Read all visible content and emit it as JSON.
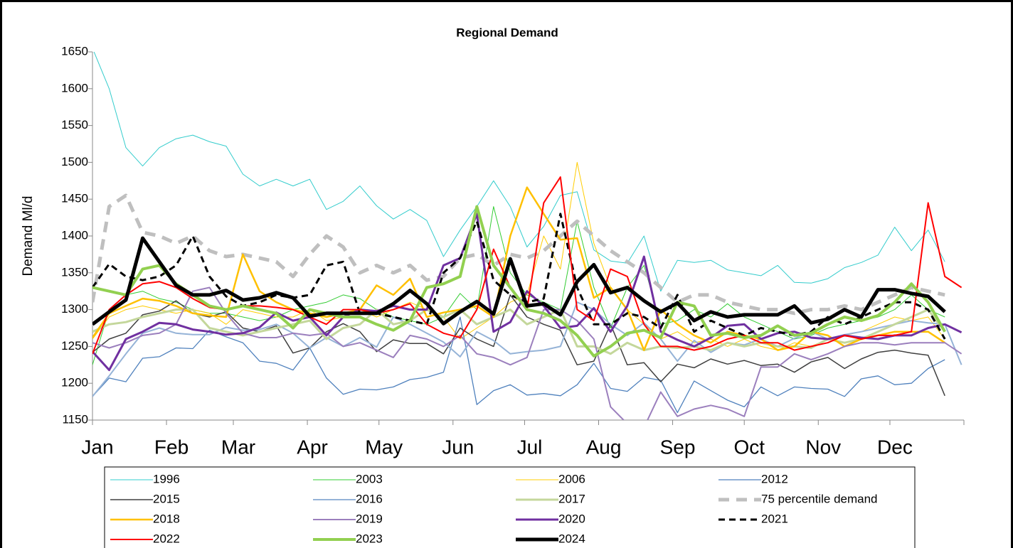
{
  "chart_data": {
    "type": "line",
    "title": "Regional Demand",
    "y_label": "Demand Ml/d",
    "x": [
      0,
      7,
      14,
      21,
      28,
      35,
      42,
      49,
      56,
      63,
      70,
      77,
      84,
      91,
      98,
      105,
      112,
      119,
      126,
      133,
      140,
      147,
      154,
      161,
      168,
      175,
      182,
      189,
      196,
      203,
      210,
      217,
      224,
      231,
      238,
      245,
      252,
      259,
      266,
      273,
      280,
      287,
      294,
      301,
      308,
      315,
      322,
      329,
      336,
      343,
      350,
      357,
      364
    ],
    "xlim": [
      0,
      365
    ],
    "xticks": [
      {
        "value": 0,
        "label": "Jan"
      },
      {
        "value": 31,
        "label": "Feb"
      },
      {
        "value": 59,
        "label": "Mar"
      },
      {
        "value": 90,
        "label": "Apr"
      },
      {
        "value": 120,
        "label": "May"
      },
      {
        "value": 151,
        "label": "Jun"
      },
      {
        "value": 181,
        "label": "Jul"
      },
      {
        "value": 212,
        "label": "Aug"
      },
      {
        "value": 243,
        "label": "Sep"
      },
      {
        "value": 273,
        "label": "Oct"
      },
      {
        "value": 304,
        "label": "Nov"
      },
      {
        "value": 334,
        "label": "Dec"
      }
    ],
    "ylim": [
      1150,
      1650
    ],
    "yticks": [
      1150,
      1200,
      1250,
      1300,
      1350,
      1400,
      1450,
      1500,
      1550,
      1600,
      1650
    ],
    "series": [
      {
        "name": "1996",
        "color": "#33cccc",
        "width": 1,
        "dash": false,
        "values": [
          1655,
          1600,
          1520,
          1495,
          1520,
          1532,
          1537,
          1528,
          1522,
          1484,
          1468,
          1477,
          1468,
          1477,
          1436,
          1447,
          1468,
          1441,
          1423,
          1436,
          1421,
          1372,
          1408,
          1440,
          1475,
          1440,
          1385,
          1413,
          1455,
          1460,
          1381,
          1366,
          1363,
          1400,
          1325,
          1367,
          1364,
          1367,
          1354,
          1350,
          1346,
          1360,
          1337,
          1336,
          1342,
          1357,
          1364,
          1374,
          1412,
          1380,
          1408,
          1365,
          null
        ]
      },
      {
        "name": "2003",
        "color": "#33cc33",
        "width": 1,
        "dash": false,
        "values": [
          1225,
          1300,
          1320,
          1325,
          1315,
          1310,
          1300,
          1295,
          1295,
          1290,
          1285,
          1290,
          1300,
          1305,
          1310,
          1320,
          1315,
          1300,
          1290,
          1285,
          1280,
          1290,
          1322,
          1300,
          1440,
          1350,
          1320,
          1310,
          1300,
          1420,
          1330,
          1275,
          1330,
          1360,
          1280,
          1285,
          1300,
          1290,
          1308,
          1290,
          1280,
          1270,
          1260,
          1265,
          1275,
          1280,
          1285,
          1290,
          1300,
          1320,
          1300,
          1290,
          null
        ]
      },
      {
        "name": "2006",
        "color": "#ffcc00",
        "width": 1,
        "dash": false,
        "values": [
          1260,
          1290,
          1300,
          1305,
          1300,
          1295,
          1300,
          1295,
          1280,
          1300,
          1295,
          1290,
          1290,
          1300,
          1285,
          1290,
          1300,
          1290,
          1300,
          1310,
          1300,
          1290,
          1260,
          1275,
          1290,
          1310,
          1320,
          1400,
          1355,
          1500,
          1390,
          1330,
          1300,
          1280,
          1260,
          1270,
          1255,
          1260,
          1250,
          1260,
          1250,
          1245,
          1255,
          1250,
          1260,
          1265,
          1270,
          1280,
          1290,
          1285,
          1290,
          1260,
          null
        ]
      },
      {
        "name": "2012",
        "color": "#4f81bd",
        "width": 1.3,
        "dash": false,
        "values": [
          1182,
          1207,
          1202,
          1234,
          1236,
          1248,
          1247,
          1272,
          1263,
          1255,
          1230,
          1227,
          1218,
          1248,
          1207,
          1185,
          1192,
          1191,
          1195,
          1205,
          1208,
          1215,
          1290,
          1171,
          1190,
          1198,
          1184,
          1186,
          1183,
          1198,
          1227,
          1193,
          1189,
          1208,
          1204,
          1160,
          1203,
          1190,
          1177,
          1168,
          1195,
          1183,
          1195,
          1193,
          1192,
          1182,
          1206,
          1210,
          1198,
          1200,
          1220,
          1232,
          null
        ]
      },
      {
        "name": "2015",
        "color": "#404040",
        "width": 1.5,
        "dash": false,
        "values": [
          1242,
          1260,
          1268,
          1293,
          1298,
          1312,
          1295,
          1290,
          1297,
          1275,
          1270,
          1278,
          1241,
          1248,
          1270,
          1281,
          1270,
          1243,
          1259,
          1254,
          1254,
          1240,
          1275,
          1260,
          1250,
          1320,
          1290,
          1280,
          1272,
          1225,
          1230,
          1280,
          1225,
          1228,
          1202,
          1226,
          1221,
          1233,
          1226,
          1231,
          1224,
          1226,
          1215,
          1229,
          1235,
          1220,
          1233,
          1242,
          1245,
          1241,
          1238,
          1183,
          null
        ]
      },
      {
        "name": "2016",
        "color": "#95b3d7",
        "width": 2,
        "dash": false,
        "values": [
          1182,
          1210,
          1240,
          1268,
          1275,
          1268,
          1266,
          1266,
          1276,
          1272,
          1273,
          1280,
          1268,
          1248,
          1262,
          1250,
          1262,
          1249,
          1290,
          1280,
          1268,
          1256,
          1236,
          1270,
          1258,
          1240,
          1243,
          1245,
          1250,
          1310,
          1300,
          1280,
          1265,
          1282,
          1260,
          1230,
          1258,
          1242,
          1255,
          1252,
          1260,
          1250,
          1261,
          1270,
          1260,
          1266,
          1270,
          1275,
          1280,
          1285,
          1282,
          1280,
          1225
        ]
      },
      {
        "name": "2017",
        "color": "#c4d79b",
        "width": 3,
        "dash": false,
        "values": [
          1270,
          1280,
          1283,
          1290,
          1295,
          1300,
          1300,
          1275,
          1270,
          1265,
          1270,
          1275,
          1280,
          1285,
          1260,
          1275,
          1280,
          1300,
          1280,
          1285,
          1300,
          1290,
          1300,
          1280,
          1290,
          1300,
          1280,
          1290,
          1300,
          1250,
          1250,
          1240,
          1255,
          1245,
          1250,
          1248,
          1250,
          1245,
          1255,
          1250,
          1255,
          1250,
          1250,
          1248,
          1260,
          1255,
          1260,
          1270,
          1280,
          1290,
          1300,
          1270,
          null
        ]
      },
      {
        "name": "75 percentile demand",
        "color": "#bfbfbf",
        "width": 5,
        "dash": true,
        "values": [
          1310,
          1440,
          1455,
          1405,
          1400,
          1390,
          1400,
          1380,
          1372,
          1375,
          1370,
          1365,
          1345,
          1375,
          1400,
          1385,
          1350,
          1360,
          1350,
          1360,
          1340,
          1345,
          1370,
          1375,
          1360,
          1375,
          1370,
          1380,
          1400,
          1420,
          1400,
          1380,
          1365,
          1350,
          1330,
          1310,
          1320,
          1320,
          1310,
          1305,
          1300,
          1300,
          1295,
          1300,
          1300,
          1305,
          1300,
          1310,
          1320,
          1330,
          1325,
          1320,
          null
        ]
      },
      {
        "name": "2018",
        "color": "#ffc000",
        "width": 2.5,
        "dash": false,
        "values": [
          1262,
          1295,
          1305,
          1315,
          1312,
          1305,
          1295,
          1292,
          1290,
          1375,
          1325,
          1310,
          1300,
          1295,
          1290,
          1295,
          1300,
          1333,
          1320,
          1342,
          1290,
          1296,
          1300,
          1305,
          1290,
          1400,
          1466,
          1430,
          1395,
          1397,
          1316,
          1330,
          1300,
          1245,
          1300,
          1280,
          1265,
          1255,
          1270,
          1265,
          1260,
          1245,
          1250,
          1270,
          1265,
          1250,
          1260,
          1265,
          1270,
          1270,
          1270,
          1255,
          null
        ]
      },
      {
        "name": "2019",
        "color": "#9b7fbd",
        "width": 2,
        "dash": false,
        "values": [
          1255,
          1248,
          1255,
          1265,
          1268,
          1280,
          1325,
          1330,
          1295,
          1268,
          1262,
          1262,
          1268,
          1265,
          1268,
          1250,
          1255,
          1245,
          1235,
          1265,
          1260,
          1250,
          1265,
          1240,
          1235,
          1225,
          1235,
          1300,
          1300,
          1285,
          1260,
          1168,
          1145,
          1140,
          1188,
          1155,
          1165,
          1170,
          1165,
          1155,
          1222,
          1222,
          1240,
          1232,
          1240,
          1250,
          1255,
          1255,
          1252,
          1255,
          1255,
          1255,
          1240
        ]
      },
      {
        "name": "2020",
        "color": "#7030a0",
        "width": 3,
        "dash": false,
        "values": [
          1243,
          1218,
          1260,
          1270,
          1282,
          1280,
          1273,
          1270,
          1266,
          1268,
          1276,
          1296,
          1285,
          1290,
          1265,
          1290,
          1300,
          1298,
          1305,
          1300,
          1300,
          1360,
          1370,
          1430,
          1270,
          1283,
          1325,
          1305,
          1275,
          1278,
          1302,
          1270,
          1305,
          1372,
          1270,
          1259,
          1250,
          1262,
          1278,
          1280,
          1260,
          1268,
          1270,
          1262,
          1260,
          1265,
          1262,
          1260,
          1265,
          1265,
          1275,
          1280,
          1269
        ]
      },
      {
        "name": "2021",
        "color": "#000000",
        "width": 3,
        "dash": true,
        "values": [
          1330,
          1362,
          1345,
          1340,
          1345,
          1360,
          1400,
          1345,
          1318,
          1305,
          1310,
          1320,
          1316,
          1320,
          1360,
          1365,
          1295,
          1295,
          1290,
          1285,
          1280,
          1350,
          1370,
          1420,
          1340,
          1320,
          1310,
          1315,
          1430,
          1330,
          1280,
          1280,
          1295,
          1290,
          1275,
          1320,
          1270,
          1285,
          1275,
          1265,
          1275,
          1270,
          1265,
          1270,
          1290,
          1280,
          1290,
          1300,
          1310,
          1310,
          1300,
          1260,
          null
        ]
      },
      {
        "name": "2022",
        "color": "#ff0000",
        "width": 2,
        "dash": false,
        "values": [
          1240,
          1300,
          1320,
          1335,
          1338,
          1330,
          1315,
          1303,
          1300,
          1305,
          1305,
          1303,
          1300,
          1290,
          1280,
          1300,
          1300,
          1295,
          1300,
          1308,
          1280,
          1268,
          1262,
          1300,
          1382,
          1330,
          1300,
          1445,
          1480,
          1300,
          1285,
          1355,
          1345,
          1280,
          1250,
          1250,
          1245,
          1250,
          1260,
          1265,
          1255,
          1255,
          1245,
          1250,
          1255,
          1265,
          1260,
          1265,
          1265,
          1270,
          1445,
          1345,
          1330
        ]
      },
      {
        "name": "2023",
        "color": "#92d050",
        "width": 4,
        "dash": false,
        "values": [
          1330,
          1325,
          1320,
          1355,
          1360,
          1335,
          1320,
          1305,
          1300,
          1305,
          1300,
          1295,
          1275,
          1300,
          1295,
          1290,
          1290,
          1280,
          1272,
          1285,
          1330,
          1335,
          1345,
          1440,
          1360,
          1330,
          1300,
          1295,
          1285,
          1265,
          1237,
          1250,
          1268,
          1272,
          1262,
          1310,
          1305,
          1265,
          1268,
          1262,
          1265,
          1278,
          1265,
          1268,
          1280,
          1290,
          1285,
          1292,
          1310,
          1335,
          1310,
          1270,
          null
        ]
      },
      {
        "name": "2024",
        "color": "#000000",
        "width": 5,
        "dash": false,
        "values": [
          1280,
          1297,
          1313,
          1397,
          1365,
          1333,
          1320,
          1320,
          1326,
          1313,
          1316,
          1323,
          1316,
          1291,
          1295,
          1295,
          1295,
          1295,
          1308,
          1326,
          1308,
          1281,
          1297,
          1311,
          1294,
          1369,
          1305,
          1308,
          1293,
          1338,
          1361,
          1323,
          1330,
          1312,
          1297,
          1309,
          1285,
          1297,
          1290,
          1293,
          1293,
          1293,
          1305,
          1282,
          1287,
          1300,
          1290,
          1327,
          1327,
          1322,
          1318,
          1297,
          null
        ]
      }
    ]
  }
}
